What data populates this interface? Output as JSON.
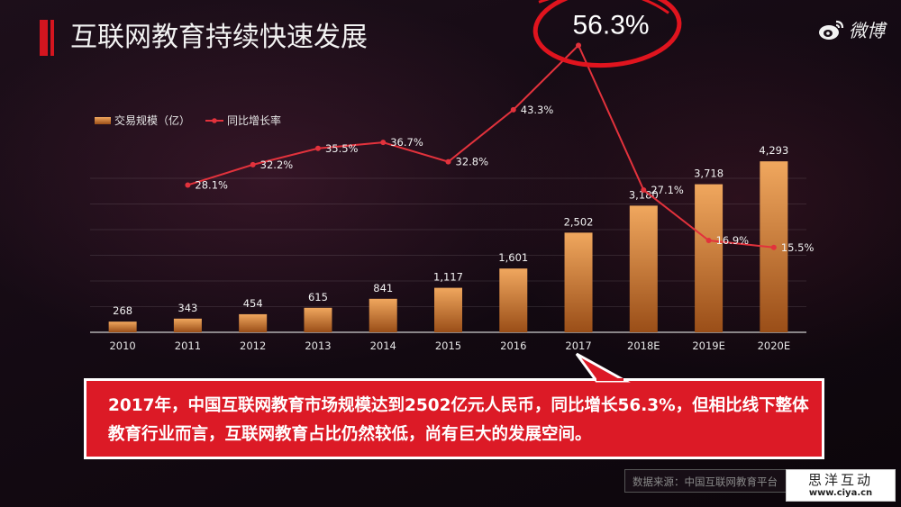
{
  "header": {
    "title": "互联网教育持续快速发展",
    "brand": "微博"
  },
  "colors": {
    "accent_red": "#dc1a26",
    "bar_top": "#f0a75e",
    "bar_bottom": "#9a4e18",
    "line": "#e2323c"
  },
  "chart_data": {
    "type": "bar",
    "categories": [
      "2010",
      "2011",
      "2012",
      "2013",
      "2014",
      "2015",
      "2016",
      "2017",
      "2018E",
      "2019E",
      "2020E"
    ],
    "series": [
      {
        "name": "交易规模（亿）",
        "type": "bar",
        "values": [
          268,
          343,
          454,
          615,
          841,
          1117,
          1601,
          2502,
          3180,
          3718,
          4293
        ],
        "labels": [
          "268",
          "343",
          "454",
          "615",
          "841",
          "1,117",
          "1,601",
          "2,502",
          "3,180",
          "3,718",
          "4,293"
        ]
      },
      {
        "name": "同比增长率",
        "type": "line",
        "values": [
          null,
          28.1,
          32.2,
          35.5,
          36.7,
          32.8,
          43.3,
          56.3,
          27.1,
          16.9,
          15.5
        ],
        "labels": [
          "",
          "28.1%",
          "32.2%",
          "35.5%",
          "36.7%",
          "32.8%",
          "43.3%",
          "56.3%",
          "27.1%",
          "16.9%",
          "15.5%"
        ]
      }
    ],
    "legend_position": "top-left",
    "grid": true,
    "bar_ylim": [
      0,
      4500
    ],
    "line_ylim": [
      0,
      60
    ],
    "highlight": "56.3%"
  },
  "callout": {
    "text": "2017年，中国互联网教育市场规模达到2502亿元人民币，同比增长56.3%，但相比线下整体教育行业而言，互联网教育占比仍然较低，尚有巨大的发展空间。"
  },
  "source": "数据来源：中国互联网教育平台",
  "watermark": {
    "name": "思洋互动",
    "url": "www.ciya.cn"
  }
}
